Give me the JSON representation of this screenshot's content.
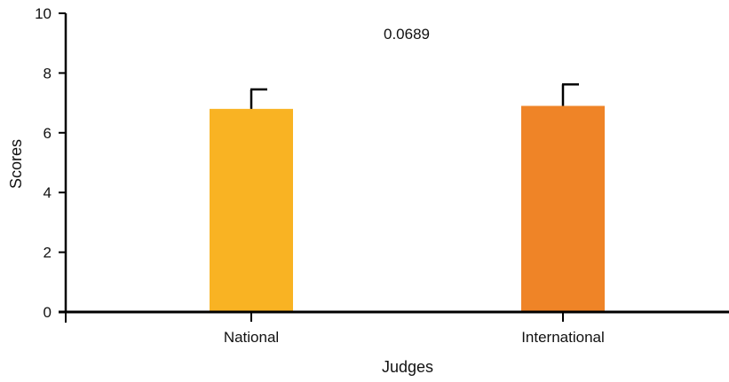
{
  "chart_data": {
    "type": "bar",
    "title": "",
    "xlabel": "Judges",
    "ylabel": "Scores",
    "categories": [
      "National",
      "International"
    ],
    "values": [
      6.8,
      6.9
    ],
    "error_upper": [
      7.45,
      7.62
    ],
    "colors": [
      "#F9B323",
      "#EF8427"
    ],
    "ylim": [
      0,
      10
    ],
    "yticks": [
      0,
      2,
      4,
      6,
      8,
      10
    ],
    "ytick_labels": [
      "0",
      "2",
      "4",
      "6",
      "8",
      "10"
    ],
    "annotation": "0.0689",
    "grid": false,
    "legend": "none"
  }
}
